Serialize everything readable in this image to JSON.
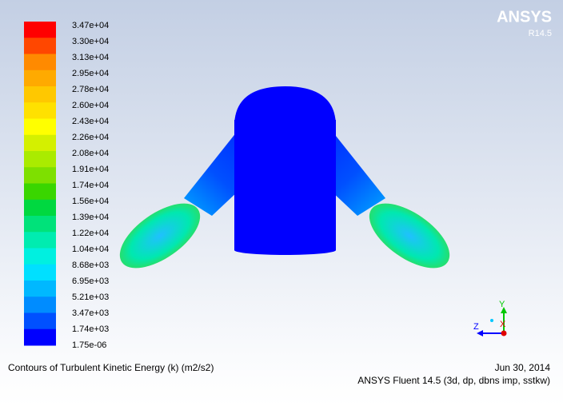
{
  "logo": {
    "name": "ANSYS",
    "release": "R14.5"
  },
  "legend": {
    "labels": [
      "3.47e+04",
      "3.30e+04",
      "3.13e+04",
      "2.95e+04",
      "2.78e+04",
      "2.60e+04",
      "2.43e+04",
      "2.26e+04",
      "2.08e+04",
      "1.91e+04",
      "1.74e+04",
      "1.56e+04",
      "1.39e+04",
      "1.22e+04",
      "1.04e+04",
      "8.68e+03",
      "6.95e+03",
      "5.21e+03",
      "3.47e+03",
      "1.74e+03",
      "1.75e-06"
    ],
    "colors": [
      "#ff0000",
      "#ff4700",
      "#ff8a00",
      "#ffaa00",
      "#ffc800",
      "#ffe100",
      "#ffff00",
      "#d4f000",
      "#aaeb00",
      "#7ee000",
      "#3ad600",
      "#00d840",
      "#00e27a",
      "#00ecb0",
      "#00f0e0",
      "#00e0ff",
      "#00b8ff",
      "#008cff",
      "#0050ff",
      "#0000ff"
    ]
  },
  "triad": {
    "y": "Y",
    "z": "Z",
    "x": "X"
  },
  "footer": {
    "title": "Contours of Turbulent Kinetic Energy (k) (m2/s2)",
    "date": "Jun 30, 2014",
    "solver": "ANSYS Fluent 14.5 (3d, dp, dbns imp, sstkw)"
  }
}
